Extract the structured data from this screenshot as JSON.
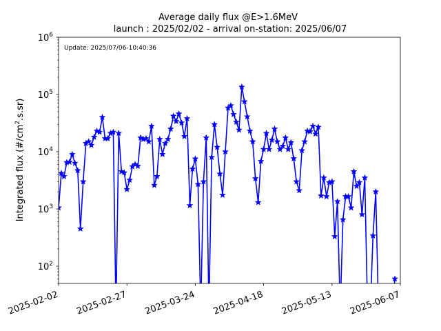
{
  "chart_data": {
    "type": "line",
    "title": "Average daily flux @E>1.6MeV",
    "subtitle": "launch : 2025/02/02 - arrival on-station: 2025/06/07",
    "xlabel": "",
    "ylabel": "Integrated flux (#/cm",
    "ylabel_sup": "2",
    "ylabel_tail": ".s.sr)",
    "annotation": "Update: 2025/07/06-10:40:36",
    "y_scale": "log",
    "ylim": [
      50,
      1000000
    ],
    "xlim": [
      "2025-02-02",
      "2025-06-07"
    ],
    "x_ticks": [
      "2025-02-02",
      "2025-02-27",
      "2025-03-24",
      "2025-04-18",
      "2025-05-13",
      "2025-06-07"
    ],
    "y_ticks": [
      {
        "value": 100,
        "base": "10",
        "exp": "2"
      },
      {
        "value": 1000,
        "base": "10",
        "exp": "3"
      },
      {
        "value": 10000,
        "base": "10",
        "exp": "4"
      },
      {
        "value": 100000,
        "base": "10",
        "exp": "5"
      },
      {
        "value": 1000000,
        "base": "10",
        "exp": "6"
      }
    ],
    "grid": false,
    "marker": "star",
    "color": "#0000ff",
    "series": [
      {
        "x": [
          "2025-02-02",
          "2025-02-03",
          "2025-02-04",
          "2025-02-05",
          "2025-02-06",
          "2025-02-07",
          "2025-02-08",
          "2025-02-09",
          "2025-02-10",
          "2025-02-11",
          "2025-02-12",
          "2025-02-13",
          "2025-02-14",
          "2025-02-15",
          "2025-02-16",
          "2025-02-17",
          "2025-02-18",
          "2025-02-19",
          "2025-02-20",
          "2025-02-21",
          "2025-02-22",
          "2025-02-23",
          "2025-02-24",
          "2025-02-25",
          "2025-02-26",
          "2025-02-27",
          "2025-02-28",
          "2025-03-01",
          "2025-03-02",
          "2025-03-03",
          "2025-03-04",
          "2025-03-05",
          "2025-03-06",
          "2025-03-07",
          "2025-03-08",
          "2025-03-09",
          "2025-03-10",
          "2025-03-11",
          "2025-03-12",
          "2025-03-13",
          "2025-03-14",
          "2025-03-15",
          "2025-03-16",
          "2025-03-17",
          "2025-03-18",
          "2025-03-19",
          "2025-03-20",
          "2025-03-21",
          "2025-03-22",
          "2025-03-23",
          "2025-03-24",
          "2025-03-25",
          "2025-03-26",
          "2025-03-27",
          "2025-03-28",
          "2025-03-29",
          "2025-03-30",
          "2025-03-31",
          "2025-04-01",
          "2025-04-02",
          "2025-04-03",
          "2025-04-04",
          "2025-04-05",
          "2025-04-06",
          "2025-04-07",
          "2025-04-08",
          "2025-04-09",
          "2025-04-10",
          "2025-04-11",
          "2025-04-12",
          "2025-04-13",
          "2025-04-14",
          "2025-04-15",
          "2025-04-16",
          "2025-04-17",
          "2025-04-18",
          "2025-04-19",
          "2025-04-20",
          "2025-04-21",
          "2025-04-22",
          "2025-04-23",
          "2025-04-24",
          "2025-04-25",
          "2025-04-26",
          "2025-04-27",
          "2025-04-28",
          "2025-04-29",
          "2025-04-30",
          "2025-05-01",
          "2025-05-02",
          "2025-05-03",
          "2025-05-04",
          "2025-05-05",
          "2025-05-06",
          "2025-05-07",
          "2025-05-08",
          "2025-05-09",
          "2025-05-10",
          "2025-05-11",
          "2025-05-12",
          "2025-05-13",
          "2025-05-14",
          "2025-05-15",
          "2025-05-16",
          "2025-05-17",
          "2025-05-18",
          "2025-05-19",
          "2025-05-20",
          "2025-05-21",
          "2025-05-22",
          "2025-05-23",
          "2025-05-24",
          "2025-05-25",
          "2025-05-26",
          "2025-05-27",
          "2025-05-28",
          "2025-05-29",
          "2025-05-30",
          "2025-05-31",
          "2025-06-01",
          "2025-06-02",
          "2025-06-03",
          "2025-06-04",
          "2025-06-05"
        ],
        "y": [
          1050,
          4200,
          3700,
          6500,
          6600,
          9000,
          6300,
          4700,
          450,
          3000,
          14000,
          15000,
          13000,
          18000,
          23000,
          22000,
          40000,
          17000,
          17000,
          21000,
          22000,
          null,
          21000,
          4500,
          4300,
          2200,
          3200,
          5500,
          6000,
          5600,
          17500,
          16500,
          17000,
          15000,
          28000,
          2600,
          3700,
          16500,
          9000,
          14000,
          16500,
          25000,
          42000,
          34000,
          46000,
          32000,
          18500,
          38000,
          1150,
          5000,
          7500,
          2700,
          null,
          3000,
          17500,
          null,
          8000,
          30000,
          12000,
          4100,
          1750,
          10000,
          58000,
          64000,
          45000,
          33000,
          24000,
          135000,
          75000,
          41000,
          23000,
          15000,
          3400,
          1300,
          6800,
          11000,
          21000,
          11000,
          16000,
          25000,
          15000,
          11000,
          12500,
          17500,
          11000,
          14500,
          7600,
          3000,
          2100,
          10500,
          15000,
          23000,
          22500,
          28000,
          20500,
          27000,
          1700,
          3500,
          1650,
          2900,
          3000,
          330,
          1350,
          null,
          650,
          1650,
          1650,
          1050,
          4500,
          2500,
          2900,
          800,
          3500,
          null,
          null,
          340,
          2000,
          null,
          null,
          null,
          null,
          null,
          null,
          60
        ]
      }
    ]
  }
}
